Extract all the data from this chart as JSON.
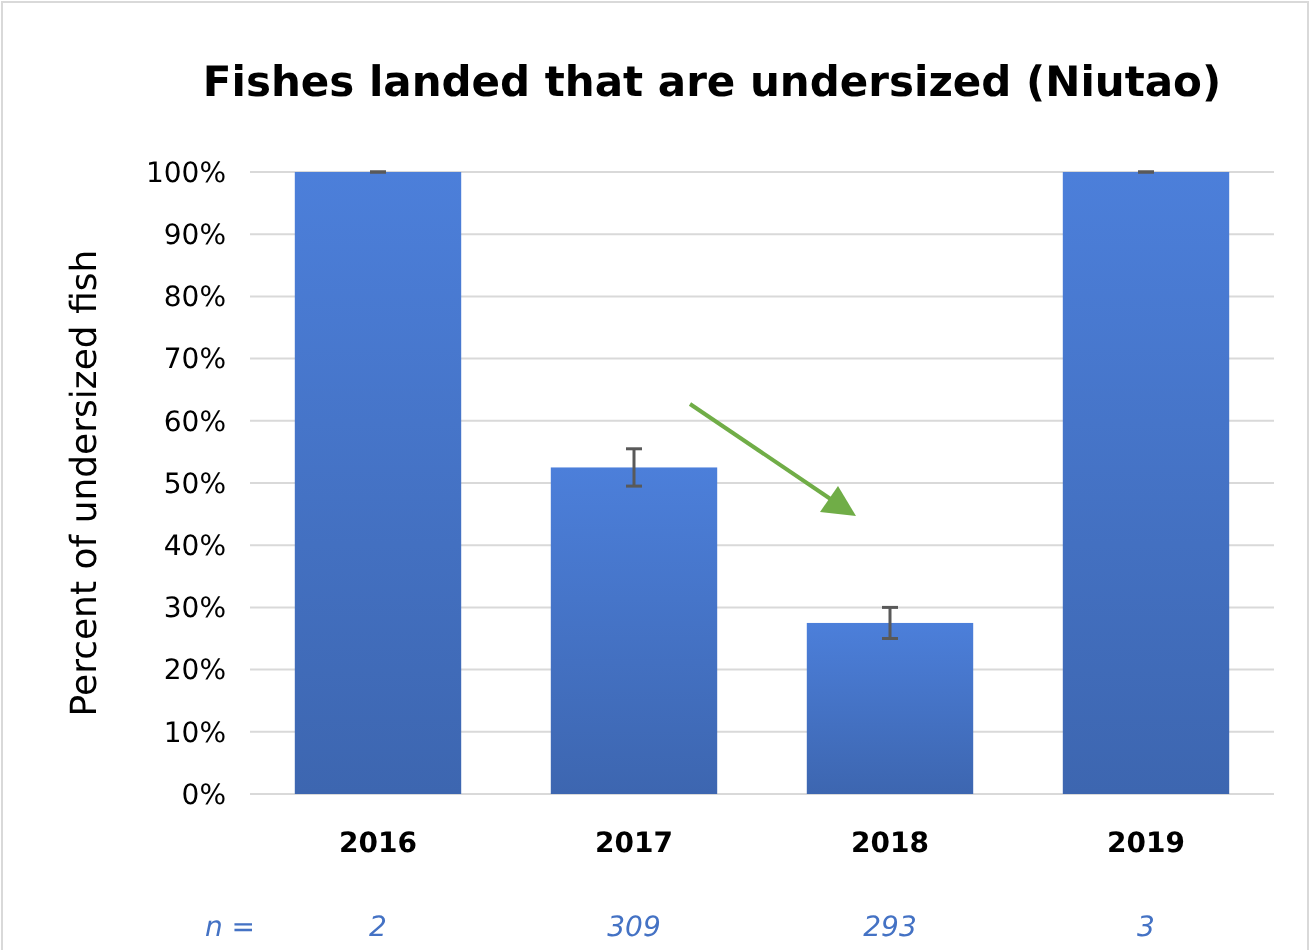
{
  "chart_data": {
    "type": "bar",
    "title": "Fishes landed that are undersized (Niutao)",
    "ylabel": "Percent of undersized fish",
    "categories": [
      "2016",
      "2017",
      "2018",
      "2019"
    ],
    "values": [
      100,
      52.5,
      27.5,
      100
    ],
    "errors": [
      0,
      3,
      2.5,
      0
    ],
    "color": "#4472c4",
    "ylim": [
      0,
      100
    ],
    "yticks": [
      {
        "value": 0,
        "label": "0%"
      },
      {
        "value": 10,
        "label": "10%"
      },
      {
        "value": 20,
        "label": "20%"
      },
      {
        "value": 30,
        "label": "30%"
      },
      {
        "value": 40,
        "label": "40%"
      },
      {
        "value": 50,
        "label": "50%"
      },
      {
        "value": 60,
        "label": "60%"
      },
      {
        "value": 70,
        "label": "70%"
      },
      {
        "value": 80,
        "label": "80%"
      },
      {
        "value": 90,
        "label": "90%"
      },
      {
        "value": 100,
        "label": "100%"
      }
    ],
    "grid": "y",
    "annotations": [
      "n =",
      "2",
      "309",
      "293",
      "3"
    ]
  }
}
